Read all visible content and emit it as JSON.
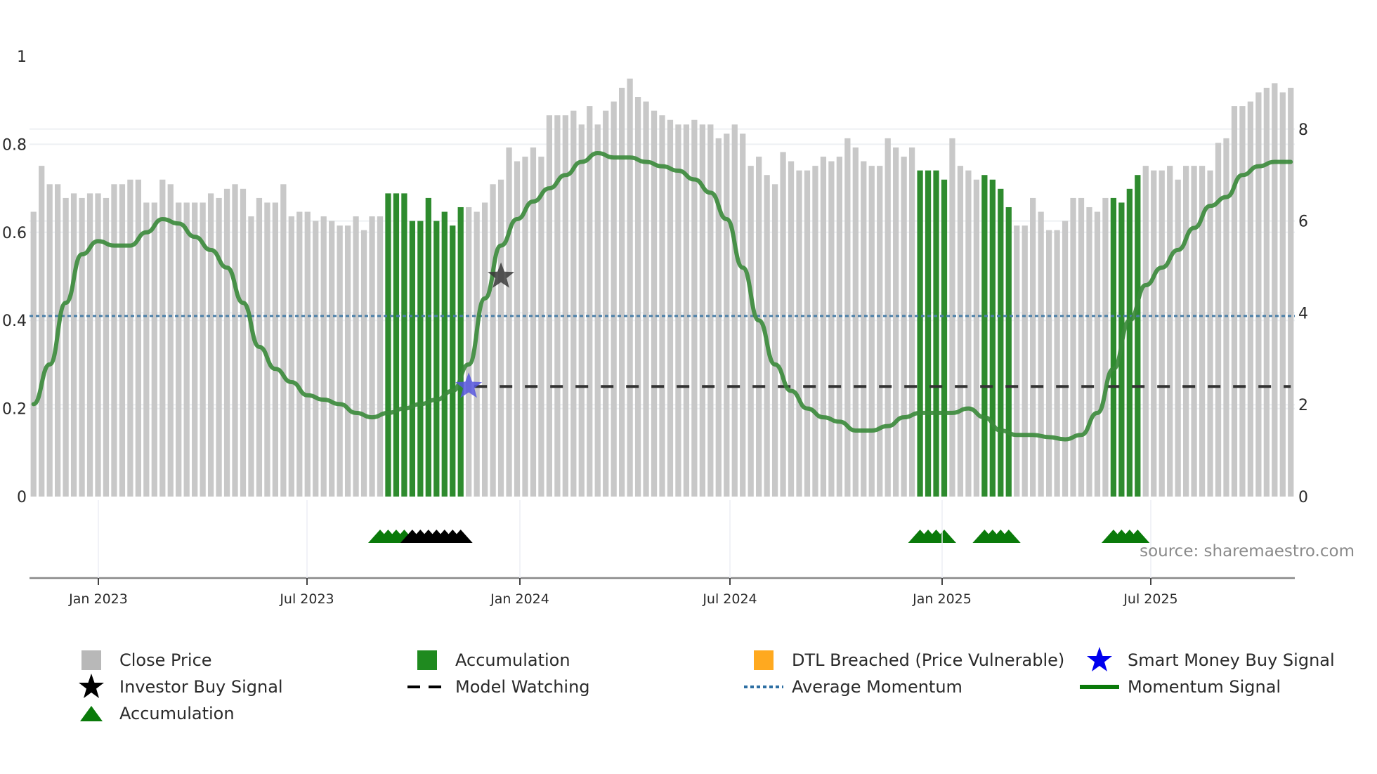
{
  "chart_data": {
    "type": "bar",
    "title": "",
    "xlabel": "",
    "ylabel_left": "",
    "ylabel_right": "",
    "left_axis": {
      "ticks": [
        "0",
        "0.2",
        "0.4",
        "0.6",
        "0.8",
        "1"
      ],
      "range": [
        0,
        1
      ]
    },
    "right_axis": {
      "ticks": [
        "0",
        "2",
        "4",
        "6",
        "8"
      ],
      "range": [
        0,
        9.6
      ]
    },
    "x_ticks": [
      "Jan 2023",
      "Jul 2023",
      "Jan 2024",
      "Jul 2024",
      "Jan 2025",
      "Jul 2025"
    ],
    "grid": true,
    "legend_position": "bottom",
    "series": [
      {
        "name": "Close Price",
        "type": "bar",
        "axis": "right",
        "color": "#c8c8c8",
        "values": [
          6.2,
          7.2,
          6.8,
          6.8,
          6.5,
          6.6,
          6.5,
          6.6,
          6.6,
          6.5,
          6.8,
          6.8,
          6.9,
          6.9,
          6.4,
          6.4,
          6.9,
          6.8,
          6.4,
          6.4,
          6.4,
          6.4,
          6.6,
          6.5,
          6.7,
          6.8,
          6.7,
          6.1,
          6.5,
          6.4,
          6.4,
          6.8,
          6.1,
          6.2,
          6.2,
          6.0,
          6.1,
          6.0,
          5.9,
          5.9,
          6.1,
          5.8,
          6.1,
          6.1,
          6.6,
          6.6,
          6.6,
          6.0,
          6.0,
          6.5,
          6.0,
          6.2,
          5.9,
          6.3,
          6.3,
          6.2,
          6.4,
          6.8,
          6.9,
          7.6,
          7.3,
          7.4,
          7.6,
          7.4,
          8.3,
          8.3,
          8.3,
          8.4,
          8.1,
          8.5,
          8.1,
          8.4,
          8.6,
          8.9,
          9.1,
          8.7,
          8.6,
          8.4,
          8.3,
          8.2,
          8.1,
          8.1,
          8.2,
          8.1,
          8.1,
          7.8,
          7.9,
          8.1,
          7.9,
          7.2,
          7.4,
          7.0,
          6.8,
          7.5,
          7.3,
          7.1,
          7.1,
          7.2,
          7.4,
          7.3,
          7.4,
          7.8,
          7.6,
          7.3,
          7.2,
          7.2,
          7.8,
          7.6,
          7.4,
          7.6,
          7.1,
          7.1,
          7.1,
          6.9,
          7.8,
          7.2,
          7.1,
          6.9,
          7.0,
          6.9,
          6.7,
          6.3,
          5.9,
          5.9,
          6.5,
          6.2,
          5.8,
          5.8,
          6.0,
          6.5,
          6.5,
          6.3,
          6.2,
          6.5,
          6.5,
          6.4,
          6.7,
          7.0,
          7.2,
          7.1,
          7.1,
          7.2,
          6.9,
          7.2,
          7.2,
          7.2,
          7.1,
          7.7,
          7.8,
          8.5,
          8.5,
          8.6,
          8.8,
          8.9,
          9.0,
          8.8,
          8.9
        ]
      },
      {
        "name": "Accumulation",
        "type": "bar-highlight",
        "color": "#2e8b2e",
        "bar_indices": [
          44,
          45,
          46,
          47,
          48,
          49,
          50,
          51,
          52,
          53,
          110,
          111,
          112,
          113,
          118,
          119,
          120,
          121,
          134,
          135,
          136,
          137
        ]
      },
      {
        "name": "Momentum Signal",
        "type": "line",
        "axis": "left",
        "color": "#3a8a3a",
        "points": [
          [
            0,
            0.21
          ],
          [
            2,
            0.3
          ],
          [
            4,
            0.44
          ],
          [
            6,
            0.55
          ],
          [
            8,
            0.58
          ],
          [
            10,
            0.57
          ],
          [
            12,
            0.57
          ],
          [
            14,
            0.6
          ],
          [
            16,
            0.63
          ],
          [
            18,
            0.62
          ],
          [
            20,
            0.59
          ],
          [
            22,
            0.56
          ],
          [
            24,
            0.52
          ],
          [
            26,
            0.44
          ],
          [
            28,
            0.34
          ],
          [
            30,
            0.29
          ],
          [
            32,
            0.26
          ],
          [
            34,
            0.23
          ],
          [
            36,
            0.22
          ],
          [
            38,
            0.21
          ],
          [
            40,
            0.19
          ],
          [
            42,
            0.18
          ],
          [
            44,
            0.19
          ],
          [
            46,
            0.2
          ],
          [
            48,
            0.21
          ],
          [
            50,
            0.22
          ],
          [
            52,
            0.24
          ],
          [
            54,
            0.3
          ],
          [
            56,
            0.45
          ],
          [
            58,
            0.57
          ],
          [
            60,
            0.63
          ],
          [
            62,
            0.67
          ],
          [
            64,
            0.7
          ],
          [
            66,
            0.73
          ],
          [
            68,
            0.76
          ],
          [
            70,
            0.78
          ],
          [
            72,
            0.77
          ],
          [
            74,
            0.77
          ],
          [
            76,
            0.76
          ],
          [
            78,
            0.75
          ],
          [
            80,
            0.74
          ],
          [
            82,
            0.72
          ],
          [
            84,
            0.69
          ],
          [
            86,
            0.63
          ],
          [
            88,
            0.52
          ],
          [
            90,
            0.4
          ],
          [
            92,
            0.3
          ],
          [
            94,
            0.24
          ],
          [
            96,
            0.2
          ],
          [
            98,
            0.18
          ],
          [
            100,
            0.17
          ],
          [
            102,
            0.15
          ],
          [
            104,
            0.15
          ],
          [
            106,
            0.16
          ],
          [
            108,
            0.18
          ],
          [
            110,
            0.19
          ],
          [
            112,
            0.19
          ],
          [
            114,
            0.19
          ],
          [
            116,
            0.2
          ],
          [
            118,
            0.18
          ],
          [
            120,
            0.15
          ],
          [
            122,
            0.14
          ],
          [
            124,
            0.14
          ],
          [
            126,
            0.135
          ],
          [
            128,
            0.13
          ],
          [
            130,
            0.14
          ],
          [
            132,
            0.19
          ],
          [
            134,
            0.29
          ],
          [
            136,
            0.4
          ],
          [
            138,
            0.48
          ],
          [
            140,
            0.52
          ],
          [
            142,
            0.56
          ],
          [
            144,
            0.61
          ],
          [
            146,
            0.66
          ],
          [
            148,
            0.68
          ],
          [
            150,
            0.73
          ],
          [
            152,
            0.75
          ],
          [
            154,
            0.76
          ],
          [
            156,
            0.76
          ]
        ]
      },
      {
        "name": "Average Momentum",
        "type": "hline",
        "axis": "left",
        "value": 0.41,
        "color": "#4a7fa8"
      },
      {
        "name": "Model Watching",
        "type": "hline-segment",
        "axis": "left",
        "value": 0.25,
        "start_index": 54,
        "end_index": 156,
        "color": "#333333"
      },
      {
        "name": "Investor Buy Signal",
        "type": "marker",
        "marker": "star",
        "color": "#3a3a3a",
        "points": [
          [
            58,
            0.5
          ]
        ]
      },
      {
        "name": "Smart Money Buy Signal",
        "type": "marker",
        "marker": "star",
        "color": "#5555dd",
        "points": [
          [
            54,
            0.25
          ]
        ]
      },
      {
        "name": "Accumulation (triangles)",
        "type": "marker-row",
        "marker": "triangle",
        "green_indices": [
          43,
          44,
          45,
          46,
          110,
          111,
          112,
          113,
          118,
          119,
          120,
          121,
          134,
          135,
          136,
          137
        ],
        "black_indices": [
          47,
          48,
          49,
          50,
          51,
          52,
          53
        ]
      }
    ]
  },
  "legend": {
    "items": [
      {
        "label": "Close Price",
        "symbol": "square",
        "color": "#b8b8b8"
      },
      {
        "label": "Accumulation",
        "symbol": "square",
        "color": "#1f8a1f"
      },
      {
        "label": "DTL Breached (Price Vulnerable)",
        "symbol": "square",
        "color": "#ffa91f"
      },
      {
        "label": "Smart Money Buy Signal",
        "symbol": "star",
        "color": "#0000ee"
      },
      {
        "label": "Investor Buy Signal",
        "symbol": "star",
        "color": "#000000"
      },
      {
        "label": "Model Watching",
        "symbol": "dash",
        "color": "#000000"
      },
      {
        "label": "Average Momentum",
        "symbol": "dot",
        "color": "#2e6fa3"
      },
      {
        "label": "Momentum Signal",
        "symbol": "line",
        "color": "#0a7a0a"
      },
      {
        "label": "Accumulation",
        "symbol": "triangle",
        "color": "#0a7a0a"
      }
    ]
  },
  "source": "source: sharemaestro.com"
}
